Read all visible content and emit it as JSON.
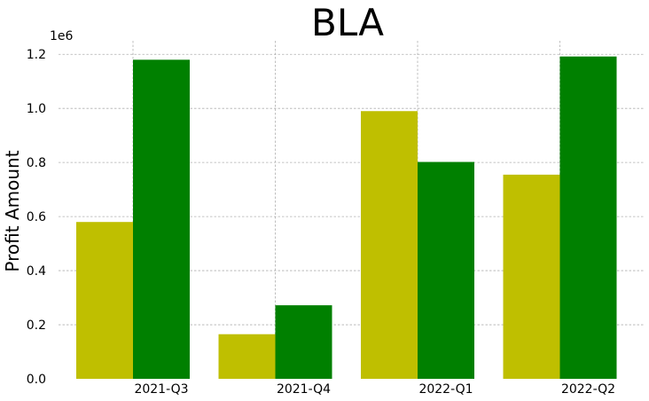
{
  "chart_data": {
    "type": "bar",
    "title": "BLA",
    "xlabel": "",
    "ylabel": "Profit Amount",
    "y_offset_label": "1e6",
    "categories": [
      "2021-Q3",
      "2021-Q4",
      "2022-Q1",
      "2022-Q2"
    ],
    "series": [
      {
        "color": "#bfbf00",
        "values": [
          580000,
          165000,
          990000,
          755000
        ]
      },
      {
        "color": "#008000",
        "values": [
          1180000,
          272000,
          802000,
          1192000
        ]
      }
    ],
    "ylim": [
      0,
      1250000
    ],
    "y_ticks": [
      0,
      200000,
      400000,
      600000,
      800000,
      1000000,
      1200000
    ],
    "y_tick_labels": [
      "0.0",
      "0.2",
      "0.4",
      "0.6",
      "0.8",
      "1.0",
      "1.2"
    ],
    "grid": true,
    "legend": "none"
  }
}
